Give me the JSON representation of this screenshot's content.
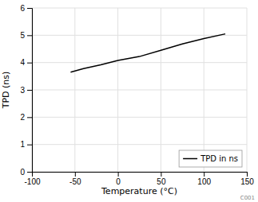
{
  "chart_data": {
    "type": "line",
    "x_label": "Temperature (°C)",
    "y_label": "TPD (ns)",
    "x": [
      -55,
      -40,
      -20,
      0,
      25,
      50,
      75,
      100,
      125
    ],
    "series": [
      {
        "name": "TPD in ns",
        "color": "#000000",
        "values": [
          3.65,
          3.78,
          3.92,
          4.08,
          4.22,
          4.45,
          4.68,
          4.88,
          5.05
        ]
      }
    ],
    "xlim": [
      -100,
      150
    ],
    "ylim": [
      0,
      6
    ],
    "xticks": [
      -100,
      -50,
      0,
      50,
      100,
      150
    ],
    "yticks": [
      0,
      1,
      2,
      3,
      4,
      5,
      6
    ],
    "grid": true,
    "legend": "lower right",
    "annotations": [
      "C001"
    ]
  }
}
